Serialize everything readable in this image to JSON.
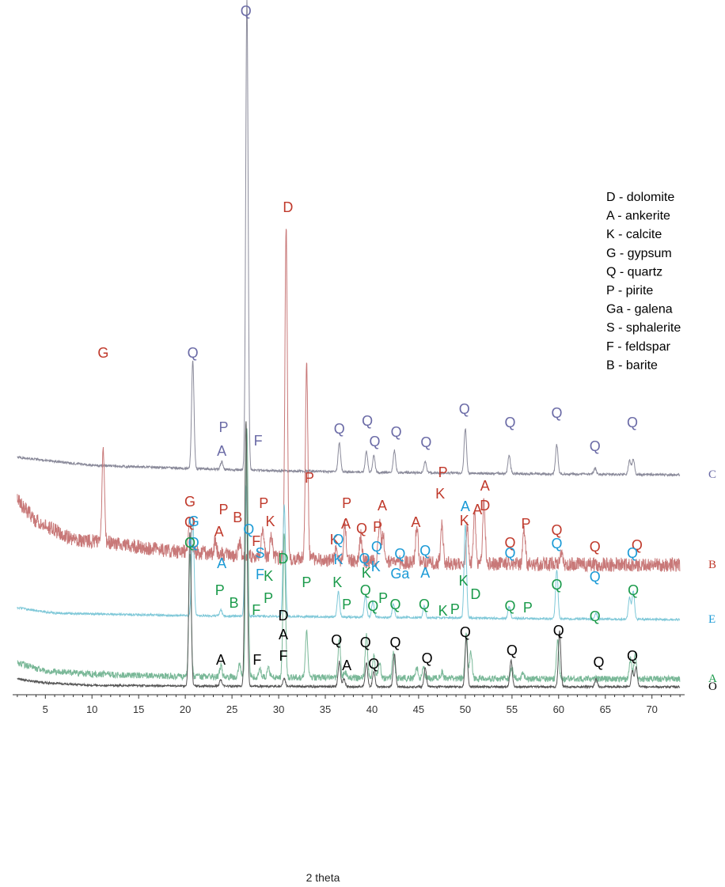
{
  "chart_data": {
    "type": "line",
    "title": "",
    "xlabel": "2 theta",
    "ylabel": "",
    "xlim": [
      1.5,
      73.5
    ],
    "xticks": [
      5,
      10,
      15,
      20,
      25,
      30,
      35,
      40,
      45,
      50,
      55,
      60,
      65,
      70
    ],
    "grid": false,
    "legend_position": "top-right",
    "legend": [
      "D - dolomite",
      "A - ankerite",
      "K - calcite",
      "G - gypsum",
      "Q - quartz",
      "P - pirite",
      "Ga - galena",
      "S - sphalerite",
      "F - feldspar",
      "B - barite"
    ],
    "series": [
      {
        "name": "C",
        "color": "#6a6aa6",
        "line_color": "#8a8a9a",
        "noise": 1.5,
        "baseline": [
          [
            2,
            578
          ],
          [
            10,
            588
          ],
          [
            20,
            592
          ],
          [
            30,
            595
          ],
          [
            40,
            597
          ],
          [
            50,
            598
          ],
          [
            60,
            599
          ],
          [
            73,
            600
          ]
        ],
        "peaks": [
          [
            20.8,
            137
          ],
          [
            23.9,
            10
          ],
          [
            26.6,
            595
          ],
          [
            36.5,
            37
          ],
          [
            39.4,
            26
          ],
          [
            40.2,
            21
          ],
          [
            42.4,
            28
          ],
          [
            45.7,
            14
          ],
          [
            50.0,
            56
          ],
          [
            54.7,
            23
          ],
          [
            59.8,
            37
          ],
          [
            63.9,
            8
          ],
          [
            67.6,
            18
          ],
          [
            68.0,
            20
          ]
        ],
        "labels": [
          [
            "Q",
            20.8,
            452
          ],
          [
            "P",
            24.1,
            546
          ],
          [
            "A",
            23.9,
            576
          ],
          [
            "Q",
            26.5,
            20
          ],
          [
            "F",
            27.8,
            563
          ],
          [
            "Q",
            36.5,
            548
          ],
          [
            "Q",
            39.5,
            538
          ],
          [
            "Q",
            40.3,
            564
          ],
          [
            "Q",
            42.6,
            552
          ],
          [
            "Q",
            45.8,
            565
          ],
          [
            "Q",
            49.9,
            523
          ],
          [
            "Q",
            54.8,
            540
          ],
          [
            "Q",
            59.8,
            528
          ],
          [
            "Q",
            63.9,
            570
          ],
          [
            "Q",
            67.9,
            540
          ]
        ]
      },
      {
        "name": "B",
        "color": "#c0392b",
        "line_color": "#c87878",
        "noise": 9,
        "baseline": [
          [
            2,
            632
          ],
          [
            4,
            658
          ],
          [
            8,
            682
          ],
          [
            12,
            686
          ],
          [
            16,
            693
          ],
          [
            20,
            698
          ],
          [
            30,
            705
          ],
          [
            40,
            710
          ],
          [
            50,
            712
          ],
          [
            60,
            713
          ],
          [
            73,
            714
          ]
        ],
        "peaks": [
          [
            11.2,
            119
          ],
          [
            20.5,
            45
          ],
          [
            23.2,
            15
          ],
          [
            25.8,
            18
          ],
          [
            28.3,
            40
          ],
          [
            29.2,
            30
          ],
          [
            30.8,
            416
          ],
          [
            33.0,
            244
          ],
          [
            36.2,
            15
          ],
          [
            37.1,
            45
          ],
          [
            38.8,
            32
          ],
          [
            40.8,
            48
          ],
          [
            41.2,
            35
          ],
          [
            44.8,
            48
          ],
          [
            47.5,
            48
          ],
          [
            50.2,
            45
          ],
          [
            51.0,
            62
          ],
          [
            52.0,
            78
          ],
          [
            56.3,
            42
          ],
          [
            60.3,
            14
          ]
        ],
        "labels": [
          [
            "G",
            11.2,
            452
          ],
          [
            "G",
            20.5,
            640
          ],
          [
            "Q",
            20.5,
            666
          ],
          [
            "P",
            24.1,
            650
          ],
          [
            "A",
            23.6,
            678
          ],
          [
            "B",
            25.6,
            660
          ],
          [
            "P",
            28.4,
            642
          ],
          [
            "K",
            29.1,
            665
          ],
          [
            "F",
            27.6,
            690
          ],
          [
            "D",
            31.0,
            268
          ],
          [
            "P",
            33.3,
            610
          ],
          [
            "P",
            37.3,
            642
          ],
          [
            "A",
            37.2,
            668
          ],
          [
            "Q",
            38.9,
            674
          ],
          [
            "P",
            40.6,
            672
          ],
          [
            "A",
            41.1,
            645
          ],
          [
            "K",
            36.0,
            688
          ],
          [
            "A",
            44.7,
            666
          ],
          [
            "P",
            47.6,
            603
          ],
          [
            "K",
            47.3,
            630
          ],
          [
            "K",
            49.9,
            664
          ],
          [
            "A",
            51.3,
            650
          ],
          [
            "A",
            52.1,
            620
          ],
          [
            "D",
            52.1,
            645
          ],
          [
            "Q",
            54.8,
            692
          ],
          [
            "P",
            56.5,
            668
          ],
          [
            "Q",
            59.8,
            676
          ],
          [
            "Q",
            63.9,
            697
          ],
          [
            "Q",
            68.4,
            695
          ]
        ]
      },
      {
        "name": "E",
        "color": "#1a9ad6",
        "line_color": "#7fc8d8",
        "noise": 1.3,
        "baseline": [
          [
            2,
            768
          ],
          [
            6,
            775
          ],
          [
            20,
            778
          ],
          [
            40,
            780
          ],
          [
            60,
            782
          ],
          [
            73,
            783
          ]
        ],
        "peaks": [
          [
            20.8,
            125
          ],
          [
            23.8,
            8
          ],
          [
            26.5,
            165
          ],
          [
            30.6,
            141
          ],
          [
            36.4,
            32
          ],
          [
            39.3,
            28
          ],
          [
            40.1,
            20
          ],
          [
            42.3,
            17
          ],
          [
            45.6,
            15
          ],
          [
            50.0,
            119
          ],
          [
            54.7,
            15
          ],
          [
            59.8,
            62
          ],
          [
            64.0,
            7
          ],
          [
            67.6,
            28
          ],
          [
            68.0,
            36
          ]
        ],
        "labels": [
          [
            "G",
            20.9,
            665
          ],
          [
            "Q",
            20.9,
            692
          ],
          [
            "A",
            23.9,
            718
          ],
          [
            "Q",
            26.8,
            675
          ],
          [
            "S",
            28.0,
            705
          ],
          [
            "F",
            28.0,
            732
          ],
          [
            "Q",
            36.4,
            688
          ],
          [
            "K",
            36.4,
            713
          ],
          [
            "Q",
            39.2,
            712
          ],
          [
            "Q",
            40.5,
            697
          ],
          [
            "K",
            40.4,
            722
          ],
          [
            "Q",
            43.0,
            706
          ],
          [
            "Ga",
            43.0,
            731
          ],
          [
            "Q",
            45.7,
            702
          ],
          [
            "A",
            45.7,
            730
          ],
          [
            "A",
            50.0,
            646
          ],
          [
            "Q",
            54.8,
            705
          ],
          [
            "Q",
            59.8,
            693
          ],
          [
            "Q",
            63.9,
            735
          ],
          [
            "Q",
            67.9,
            705
          ]
        ]
      },
      {
        "name": "A",
        "color": "#1a9a4a",
        "line_color": "#7ab898",
        "noise": 4,
        "baseline": [
          [
            2,
            838
          ],
          [
            5,
            848
          ],
          [
            10,
            852
          ],
          [
            20,
            855
          ],
          [
            40,
            857
          ],
          [
            60,
            858
          ],
          [
            73,
            858
          ]
        ],
        "peaks": [
          [
            20.5,
            155
          ],
          [
            23.8,
            14
          ],
          [
            25.8,
            16
          ],
          [
            26.6,
            315
          ],
          [
            28.0,
            10
          ],
          [
            28.9,
            12
          ],
          [
            30.6,
            185
          ],
          [
            33.0,
            58
          ],
          [
            36.5,
            48
          ],
          [
            37.1,
            8
          ],
          [
            39.4,
            55
          ],
          [
            40.2,
            28
          ],
          [
            40.8,
            20
          ],
          [
            42.3,
            32
          ],
          [
            44.8,
            14
          ],
          [
            45.5,
            14
          ],
          [
            47.5,
            8
          ],
          [
            50.1,
            58
          ],
          [
            50.6,
            35
          ],
          [
            55.0,
            14
          ],
          [
            56.2,
            8
          ],
          [
            59.9,
            50
          ],
          [
            67.7,
            25
          ],
          [
            68.2,
            30
          ]
        ],
        "labels": [
          [
            "Q",
            20.5,
            692
          ],
          [
            "P",
            23.7,
            752
          ],
          [
            "B",
            25.2,
            768
          ],
          [
            "K",
            28.9,
            734
          ],
          [
            "P",
            28.9,
            762
          ],
          [
            "F",
            27.6,
            777
          ],
          [
            "D",
            30.5,
            712
          ],
          [
            "P",
            33.0,
            742
          ],
          [
            "K",
            36.3,
            742
          ],
          [
            "P",
            37.3,
            770
          ],
          [
            "K",
            39.4,
            730
          ],
          [
            "Q",
            39.3,
            752
          ],
          [
            "Q",
            40.1,
            772
          ],
          [
            "P",
            41.2,
            762
          ],
          [
            "Q",
            42.5,
            770
          ],
          [
            "Q",
            45.6,
            770
          ],
          [
            "K",
            47.6,
            778
          ],
          [
            "P",
            48.9,
            776
          ],
          [
            "K",
            49.8,
            740
          ],
          [
            "D",
            51.1,
            757
          ],
          [
            "Q",
            54.8,
            772
          ],
          [
            "P",
            56.7,
            774
          ],
          [
            "Q",
            59.8,
            745
          ],
          [
            "Q",
            63.9,
            785
          ],
          [
            "Q",
            68.0,
            752
          ]
        ]
      },
      {
        "name": "O",
        "color": "#000000",
        "line_color": "#555555",
        "noise": 1.3,
        "baseline": [
          [
            2,
            858
          ],
          [
            5,
            863
          ],
          [
            10,
            866
          ],
          [
            20,
            867
          ],
          [
            40,
            868
          ],
          [
            60,
            868
          ],
          [
            73,
            868
          ]
        ],
        "peaks": [
          [
            20.5,
            196
          ],
          [
            23.8,
            8
          ],
          [
            26.5,
            335
          ],
          [
            30.6,
            10
          ],
          [
            36.5,
            32
          ],
          [
            37.0,
            10
          ],
          [
            39.4,
            30
          ],
          [
            40.2,
            20
          ],
          [
            42.4,
            42
          ],
          [
            45.7,
            25
          ],
          [
            50.1,
            62
          ],
          [
            54.9,
            34
          ],
          [
            60.1,
            70
          ],
          [
            64.0,
            10
          ],
          [
            67.9,
            20
          ],
          [
            68.3,
            25
          ]
        ],
        "labels": [
          [
            "A",
            23.8,
            840
          ],
          [
            "F",
            27.7,
            840
          ],
          [
            "D",
            30.5,
            784
          ],
          [
            "A",
            30.5,
            808
          ],
          [
            "F",
            30.5,
            835
          ],
          [
            "Q",
            36.2,
            815
          ],
          [
            "A",
            37.3,
            847
          ],
          [
            "Q",
            39.3,
            818
          ],
          [
            "Q",
            40.2,
            845
          ],
          [
            "Q",
            42.5,
            818
          ],
          [
            "Q",
            45.9,
            838
          ],
          [
            "Q",
            50.0,
            805
          ],
          [
            "Q",
            55.0,
            828
          ],
          [
            "Q",
            60.0,
            803
          ],
          [
            "Q",
            64.3,
            843
          ],
          [
            "Q",
            67.9,
            835
          ]
        ]
      }
    ]
  }
}
